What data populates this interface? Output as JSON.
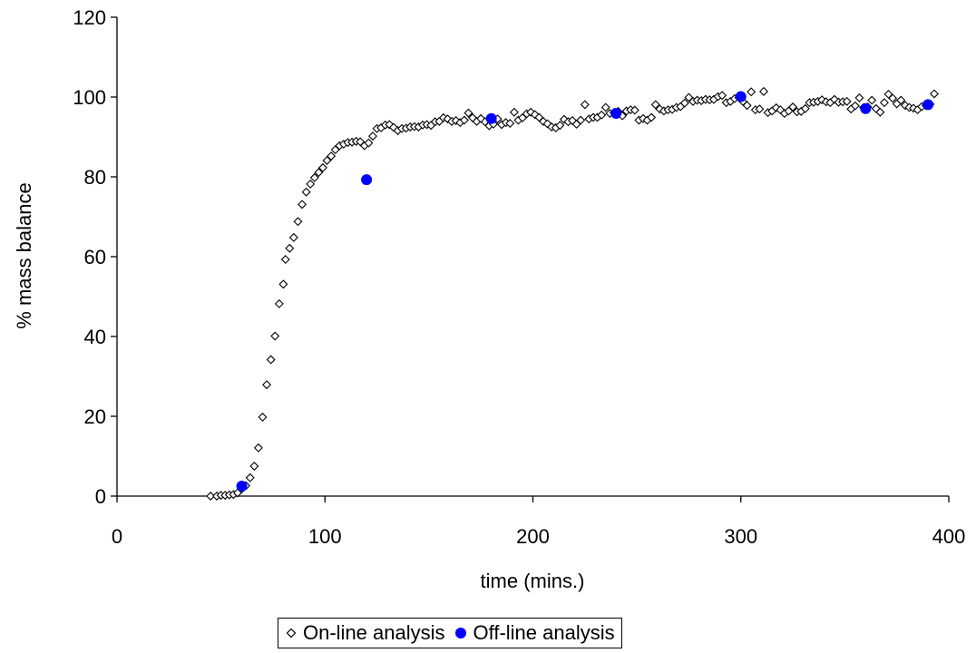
{
  "chart_data": {
    "type": "scatter",
    "title": "",
    "xlabel": "time (mins.)",
    "ylabel": "% mass balance",
    "xlim": [
      0,
      400
    ],
    "ylim": [
      0,
      120
    ],
    "xticks": [
      0,
      100,
      200,
      300,
      400
    ],
    "yticks": [
      0,
      20,
      40,
      60,
      80,
      100,
      120
    ],
    "grid": false,
    "legend_position": "bottom-center",
    "series": [
      {
        "name": "On-line analysis",
        "marker": "diamond-open",
        "color": "#000000",
        "points": [
          [
            45,
            0
          ],
          [
            48,
            0
          ],
          [
            50,
            0.2
          ],
          [
            52,
            0.2
          ],
          [
            54,
            0.3
          ],
          [
            56,
            0.4
          ],
          [
            58,
            0.8
          ],
          [
            60,
            1.8
          ],
          [
            62,
            2.6
          ],
          [
            64,
            4.6
          ],
          [
            66,
            7.5
          ],
          [
            68,
            12.1
          ],
          [
            70,
            19.8
          ],
          [
            72,
            27.9
          ],
          [
            74,
            34.2
          ],
          [
            76,
            40.1
          ],
          [
            78,
            48.2
          ],
          [
            80,
            53.1
          ],
          [
            81,
            59.3
          ],
          [
            83,
            62.1
          ],
          [
            85,
            64.8
          ],
          [
            87,
            68.8
          ],
          [
            89,
            73.1
          ],
          [
            91,
            76.2
          ],
          [
            93,
            78.2
          ],
          [
            95,
            79.8
          ],
          [
            97,
            81.1
          ],
          [
            99,
            82.3
          ],
          [
            101,
            84.1
          ],
          [
            103,
            85.2
          ],
          [
            105,
            86.8
          ],
          [
            107,
            87.8
          ],
          [
            109,
            88.2
          ],
          [
            111,
            88.6
          ],
          [
            113,
            88.7
          ],
          [
            115,
            88.9
          ],
          [
            117,
            88.8
          ],
          [
            119,
            87.8
          ],
          [
            121,
            88.5
          ],
          [
            123,
            90.2
          ],
          [
            125,
            92.1
          ],
          [
            127,
            92.3
          ],
          [
            129,
            93.0
          ],
          [
            131,
            93.1
          ],
          [
            133,
            92.4
          ],
          [
            135,
            91.6
          ],
          [
            137,
            92.1
          ],
          [
            139,
            92.2
          ],
          [
            141,
            92.5
          ],
          [
            143,
            92.6
          ],
          [
            145,
            92.5
          ],
          [
            147,
            93.0
          ],
          [
            149,
            93.1
          ],
          [
            151,
            92.9
          ],
          [
            153,
            93.8
          ],
          [
            155,
            93.9
          ],
          [
            157,
            94.8
          ],
          [
            159,
            94.5
          ],
          [
            161,
            93.9
          ],
          [
            163,
            94.1
          ],
          [
            165,
            93.6
          ],
          [
            167,
            94.2
          ],
          [
            169,
            96.0
          ],
          [
            171,
            94.8
          ],
          [
            173,
            93.9
          ],
          [
            175,
            94.6
          ],
          [
            177,
            93.8
          ],
          [
            179,
            92.8
          ],
          [
            181,
            93.2
          ],
          [
            183,
            94.5
          ],
          [
            185,
            93.1
          ],
          [
            187,
            93.6
          ],
          [
            189,
            93.4
          ],
          [
            191,
            96.2
          ],
          [
            193,
            94.2
          ],
          [
            195,
            94.8
          ],
          [
            197,
            95.8
          ],
          [
            199,
            96.2
          ],
          [
            201,
            95.6
          ],
          [
            203,
            94.9
          ],
          [
            205,
            93.9
          ],
          [
            207,
            93.3
          ],
          [
            209,
            92.5
          ],
          [
            211,
            92.3
          ],
          [
            213,
            92.9
          ],
          [
            215,
            94.4
          ],
          [
            217,
            93.8
          ],
          [
            219,
            94.1
          ],
          [
            221,
            93.2
          ],
          [
            223,
            94.2
          ],
          [
            225,
            98.1
          ],
          [
            227,
            94.5
          ],
          [
            229,
            94.9
          ],
          [
            231,
            94.9
          ],
          [
            233,
            95.5
          ],
          [
            235,
            97.4
          ],
          [
            237,
            95.9
          ],
          [
            239,
            96.1
          ],
          [
            241,
            96.4
          ],
          [
            243,
            95.3
          ],
          [
            245,
            96.5
          ],
          [
            247,
            96.8
          ],
          [
            249,
            96.7
          ],
          [
            251,
            94.2
          ],
          [
            253,
            94.6
          ],
          [
            255,
            94.2
          ],
          [
            257,
            94.9
          ],
          [
            259,
            98.1
          ],
          [
            261,
            97.0
          ],
          [
            263,
            96.5
          ],
          [
            265,
            96.8
          ],
          [
            267,
            96.9
          ],
          [
            269,
            97.4
          ],
          [
            271,
            97.6
          ],
          [
            273,
            98.5
          ],
          [
            275,
            99.9
          ],
          [
            277,
            98.9
          ],
          [
            279,
            99.2
          ],
          [
            281,
            99.1
          ],
          [
            283,
            99.4
          ],
          [
            285,
            99.3
          ],
          [
            287,
            99.4
          ],
          [
            289,
            100.1
          ],
          [
            291,
            100.4
          ],
          [
            293,
            98.6
          ],
          [
            295,
            98.9
          ],
          [
            297,
            99.6
          ],
          [
            299,
            99.9
          ],
          [
            301,
            98.9
          ],
          [
            303,
            97.9
          ],
          [
            305,
            101.3
          ],
          [
            307,
            96.8
          ],
          [
            309,
            97.0
          ],
          [
            311,
            101.4
          ],
          [
            313,
            96.1
          ],
          [
            315,
            96.5
          ],
          [
            317,
            97.3
          ],
          [
            319,
            96.8
          ],
          [
            321,
            95.9
          ],
          [
            323,
            96.5
          ],
          [
            325,
            97.5
          ],
          [
            327,
            96.3
          ],
          [
            329,
            96.4
          ],
          [
            331,
            97.1
          ],
          [
            333,
            98.6
          ],
          [
            335,
            98.7
          ],
          [
            337,
            98.9
          ],
          [
            339,
            99.3
          ],
          [
            341,
            98.8
          ],
          [
            343,
            98.6
          ],
          [
            345,
            99.4
          ],
          [
            347,
            98.7
          ],
          [
            349,
            98.8
          ],
          [
            351,
            98.9
          ],
          [
            353,
            97.0
          ],
          [
            355,
            97.8
          ],
          [
            357,
            99.8
          ],
          [
            359,
            97.4
          ],
          [
            361,
            97.5
          ],
          [
            363,
            99.2
          ],
          [
            365,
            97.1
          ],
          [
            367,
            96.2
          ],
          [
            369,
            98.6
          ],
          [
            371,
            100.7
          ],
          [
            373,
            99.7
          ],
          [
            375,
            98.3
          ],
          [
            377,
            99.2
          ],
          [
            379,
            97.9
          ],
          [
            381,
            97.4
          ],
          [
            383,
            97.2
          ],
          [
            385,
            96.8
          ],
          [
            387,
            97.6
          ],
          [
            389,
            97.9
          ],
          [
            391,
            98.2
          ],
          [
            393,
            100.8
          ]
        ]
      },
      {
        "name": "Off-line analysis",
        "marker": "circle-filled",
        "color": "#0000ff",
        "points": [
          [
            60,
            2.5
          ],
          [
            120,
            79.3
          ],
          [
            180,
            94.6
          ],
          [
            240,
            95.9
          ],
          [
            300,
            100.1
          ],
          [
            360,
            97.1
          ],
          [
            390,
            98.1
          ]
        ]
      }
    ]
  }
}
